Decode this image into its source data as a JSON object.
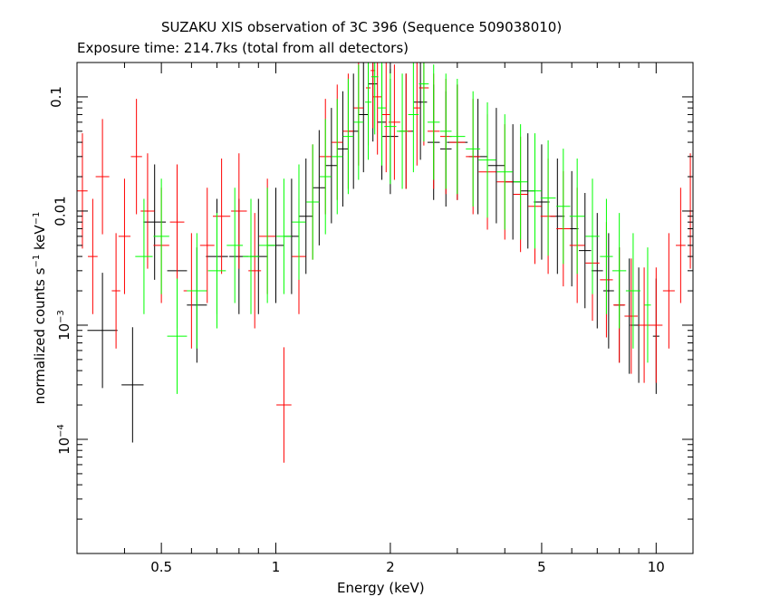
{
  "title_line1": "SUZAKU XIS observation of 3C 396 (Sequence 509038010)",
  "title_line2": "Exposure time: 214.7ks (total from all detectors)",
  "chart_data": {
    "type": "scatter",
    "xlabel": "Energy (keV)",
    "ylabel_main": "normalized counts s",
    "ylabel_exp1": "−1",
    "ylabel_mid": " keV",
    "ylabel_exp2": "−1",
    "xscale": "log",
    "yscale": "log",
    "xlim": [
      0.3,
      12.5
    ],
    "ylim": [
      1e-05,
      0.2
    ],
    "grid": false,
    "xticks": [
      {
        "value": 0.5,
        "label": "0.5"
      },
      {
        "value": 1,
        "label": "1"
      },
      {
        "value": 2,
        "label": "2"
      },
      {
        "value": 5,
        "label": "5"
      },
      {
        "value": 10,
        "label": "10"
      }
    ],
    "yticks": [
      {
        "value": 0.1,
        "label": "0.1",
        "base": "",
        "exp": ""
      },
      {
        "value": 0.01,
        "label": "0.01",
        "base": "",
        "exp": ""
      },
      {
        "value": 0.001,
        "label": "",
        "base": "10",
        "exp": "−3"
      },
      {
        "value": 0.0001,
        "label": "",
        "base": "10",
        "exp": "−4"
      }
    ],
    "series": [
      {
        "color": "#000000",
        "x": [
          0.35,
          0.42,
          0.48,
          0.55,
          0.62,
          0.7,
          0.8,
          0.9,
          1.0,
          1.1,
          1.2,
          1.3,
          1.4,
          1.5,
          1.6,
          1.7,
          1.8,
          1.9,
          2.0,
          2.2,
          2.4,
          2.6,
          2.8,
          3.0,
          3.4,
          3.8,
          4.2,
          4.6,
          5.0,
          5.5,
          6.0,
          6.5,
          7.0,
          7.5,
          8.0,
          8.5,
          9.0,
          10.0
        ],
        "y": [
          0.0009,
          0.0003,
          0.008,
          0.003,
          0.0015,
          0.004,
          0.004,
          0.004,
          0.005,
          0.006,
          0.009,
          0.016,
          0.025,
          0.035,
          0.05,
          0.07,
          0.13,
          0.06,
          0.045,
          0.05,
          0.09,
          0.04,
          0.035,
          0.04,
          0.03,
          0.025,
          0.018,
          0.015,
          0.012,
          0.009,
          0.007,
          0.0045,
          0.003,
          0.002,
          0.0015,
          0.0012,
          0.001,
          0.0008
        ]
      },
      {
        "color": "#ff0000",
        "x": [
          0.31,
          0.33,
          0.35,
          0.38,
          0.4,
          0.43,
          0.46,
          0.5,
          0.55,
          0.6,
          0.66,
          0.72,
          0.8,
          0.88,
          0.95,
          1.05,
          1.15,
          1.25,
          1.35,
          1.45,
          1.55,
          1.65,
          1.75,
          1.8,
          1.85,
          1.95,
          2.05,
          2.2,
          2.35,
          2.45,
          2.6,
          2.8,
          3.0,
          3.3,
          3.6,
          4.0,
          4.4,
          4.8,
          5.2,
          5.7,
          6.2,
          6.8,
          7.4,
          8.0,
          8.6,
          9.3,
          10.0,
          10.8,
          11.6,
          12.3
        ],
        "y": [
          0.015,
          0.004,
          0.02,
          0.002,
          0.006,
          0.03,
          0.01,
          0.005,
          0.008,
          0.002,
          0.005,
          0.009,
          0.01,
          0.003,
          0.006,
          0.0002,
          0.004,
          0.012,
          0.03,
          0.04,
          0.05,
          0.08,
          0.12,
          0.17,
          0.1,
          0.07,
          0.06,
          0.05,
          0.08,
          0.12,
          0.05,
          0.045,
          0.04,
          0.03,
          0.022,
          0.018,
          0.014,
          0.011,
          0.009,
          0.007,
          0.005,
          0.0035,
          0.0025,
          0.0015,
          0.0012,
          0.001,
          0.001,
          0.002,
          0.005,
          0.01
        ]
      },
      {
        "color": "#00ff00",
        "x": [
          0.45,
          0.5,
          0.55,
          0.62,
          0.7,
          0.78,
          0.86,
          0.95,
          1.05,
          1.15,
          1.25,
          1.35,
          1.45,
          1.55,
          1.65,
          1.75,
          1.82,
          1.9,
          2.0,
          2.15,
          2.3,
          2.45,
          2.6,
          2.8,
          3.0,
          3.3,
          3.6,
          4.0,
          4.4,
          4.8,
          5.2,
          5.7,
          6.2,
          6.8,
          7.4,
          8.0,
          8.7,
          9.5
        ],
        "y": [
          0.004,
          0.006,
          0.0008,
          0.002,
          0.003,
          0.005,
          0.004,
          0.005,
          0.006,
          0.008,
          0.012,
          0.02,
          0.03,
          0.045,
          0.06,
          0.09,
          0.15,
          0.08,
          0.055,
          0.05,
          0.07,
          0.13,
          0.06,
          0.05,
          0.045,
          0.035,
          0.028,
          0.022,
          0.018,
          0.015,
          0.013,
          0.011,
          0.009,
          0.006,
          0.004,
          0.003,
          0.002,
          0.0015
        ]
      }
    ]
  }
}
